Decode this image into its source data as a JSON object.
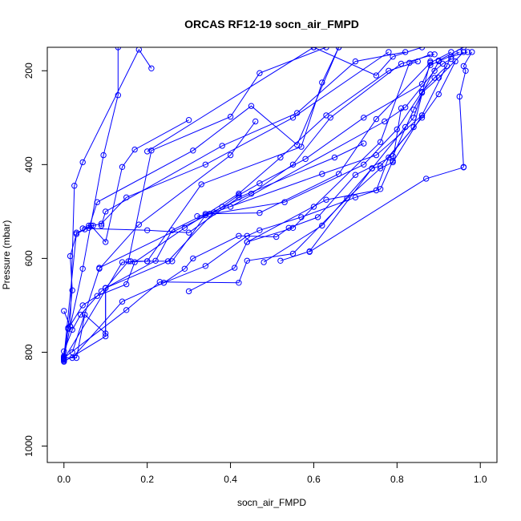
{
  "chart_data": {
    "type": "line",
    "title": "ORCAS RF12-19 socn_air_FMPD",
    "xlabel": "socn_air_FMPD",
    "ylabel": "Pressure (mbar)",
    "xlim": [
      -0.04,
      1.04
    ],
    "ylim": [
      1035,
      150
    ],
    "y_reversed": true,
    "x_ticks": [
      "0.0",
      "0.2",
      "0.4",
      "0.6",
      "0.8",
      "1.0"
    ],
    "y_ticks": [
      "200",
      "400",
      "600",
      "800",
      "1000"
    ],
    "color": "#0000ff",
    "marker": "open-circle",
    "grid": false,
    "series": [
      {
        "values": [
          [
            0.0,
            818
          ],
          [
            0.0,
            808
          ],
          [
            0.01,
            748
          ],
          [
            0.02,
            668
          ],
          [
            0.015,
            595
          ],
          [
            0.03,
            548
          ],
          [
            0.05,
            538
          ],
          [
            0.065,
            530
          ],
          [
            0.1,
            565
          ],
          [
            0.14,
            405
          ],
          [
            0.17,
            368
          ],
          [
            0.3,
            305
          ]
        ]
      },
      {
        "values": [
          [
            0.0,
            814
          ],
          [
            0.0,
            798
          ],
          [
            0.02,
            752
          ],
          [
            0.04,
            720
          ],
          [
            0.09,
            670
          ],
          [
            0.1,
            663
          ],
          [
            0.25,
            606
          ],
          [
            0.36,
            502
          ],
          [
            0.38,
            490
          ],
          [
            0.42,
            465
          ],
          [
            0.47,
            440
          ],
          [
            0.58,
            388
          ],
          [
            0.72,
            300
          ],
          [
            0.86,
            228
          ],
          [
            0.88,
            188
          ],
          [
            0.95,
            160
          ]
        ]
      },
      {
        "values": [
          [
            0.0,
            812
          ],
          [
            0.03,
            812
          ],
          [
            0.05,
            720
          ],
          [
            0.1,
            760
          ],
          [
            0.1,
            663
          ],
          [
            0.22,
            605
          ],
          [
            0.26,
            540
          ],
          [
            0.34,
            505
          ],
          [
            0.47,
            503
          ],
          [
            0.66,
            420
          ],
          [
            0.75,
            303
          ],
          [
            0.88,
            183
          ],
          [
            0.93,
            160
          ]
        ]
      },
      {
        "values": [
          [
            0.0,
            816
          ],
          [
            0.01,
            750
          ],
          [
            0.045,
            700
          ],
          [
            0.08,
            680
          ],
          [
            0.15,
            655
          ],
          [
            0.17,
            608
          ],
          [
            0.29,
            535
          ],
          [
            0.42,
            462
          ],
          [
            0.52,
            385
          ],
          [
            0.63,
            295
          ],
          [
            0.78,
            200
          ],
          [
            0.85,
            180
          ]
        ]
      },
      {
        "values": [
          [
            0.0,
            812
          ],
          [
            0.015,
            745
          ],
          [
            0.045,
            622
          ],
          [
            0.095,
            380
          ],
          [
            0.13,
            252
          ],
          [
            0.13,
            150
          ]
        ]
      },
      {
        "values": [
          [
            0.0,
            712
          ],
          [
            0.015,
            745
          ],
          [
            0.025,
            445
          ],
          [
            0.045,
            395
          ],
          [
            0.18,
            155
          ],
          [
            0.21,
            195
          ]
        ]
      },
      {
        "values": [
          [
            0.02,
            800
          ],
          [
            0.085,
            622
          ],
          [
            0.18,
            528
          ],
          [
            0.4,
            380
          ],
          [
            0.46,
            308
          ]
        ]
      },
      {
        "values": [
          [
            0.0,
            812
          ],
          [
            0.15,
            710
          ],
          [
            0.23,
            650
          ],
          [
            0.42,
            652
          ],
          [
            0.44,
            605
          ],
          [
            0.55,
            590
          ],
          [
            0.68,
            472
          ],
          [
            0.76,
            408
          ],
          [
            0.79,
            395
          ],
          [
            0.86,
            295
          ],
          [
            0.93,
            170
          ],
          [
            0.97,
            160
          ]
        ]
      },
      {
        "values": [
          [
            0.02,
            812
          ],
          [
            0.14,
            692
          ],
          [
            0.24,
            652
          ],
          [
            0.29,
            622
          ],
          [
            0.31,
            600
          ],
          [
            0.42,
            552
          ],
          [
            0.51,
            554
          ],
          [
            0.54,
            535
          ],
          [
            0.61,
            512
          ],
          [
            0.7,
            422
          ],
          [
            0.79,
            382
          ],
          [
            0.84,
            283
          ],
          [
            0.9,
            180
          ]
        ]
      },
      {
        "values": [
          [
            0.0,
            820
          ],
          [
            0.1,
            766
          ],
          [
            0.1,
            663
          ],
          [
            0.155,
            606
          ],
          [
            0.21,
            370
          ],
          [
            0.4,
            298
          ],
          [
            0.47,
            205
          ],
          [
            0.63,
            150
          ]
        ]
      },
      {
        "values": [
          [
            0.0,
            815
          ],
          [
            0.14,
            608
          ],
          [
            0.2,
            606
          ],
          [
            0.26,
            606
          ],
          [
            0.34,
            508
          ],
          [
            0.45,
            462
          ],
          [
            0.55,
            400
          ],
          [
            0.64,
            300
          ],
          [
            0.81,
            185
          ],
          [
            0.89,
            165
          ]
        ]
      },
      {
        "values": [
          [
            0.3,
            670
          ],
          [
            0.41,
            620
          ],
          [
            0.44,
            565
          ],
          [
            0.55,
            535
          ],
          [
            0.6,
            490
          ],
          [
            0.76,
            352
          ],
          [
            0.83,
            183
          ],
          [
            0.88,
            165
          ]
        ]
      },
      {
        "values": [
          [
            0.24,
            652
          ],
          [
            0.34,
            616
          ],
          [
            0.44,
            552
          ],
          [
            0.47,
            540
          ],
          [
            0.57,
            512
          ],
          [
            0.7,
            470
          ],
          [
            0.76,
            452
          ],
          [
            0.79,
            392
          ],
          [
            0.81,
            280
          ]
        ]
      },
      {
        "values": [
          [
            0.16,
            606
          ],
          [
            0.2,
            606
          ],
          [
            0.33,
            442
          ],
          [
            0.57,
            362
          ],
          [
            0.62,
            225
          ],
          [
            0.66,
            150
          ]
        ]
      },
      {
        "values": [
          [
            0.52,
            605
          ],
          [
            0.59,
            585
          ],
          [
            0.74,
            408
          ],
          [
            0.82,
            320
          ],
          [
            0.84,
            300
          ],
          [
            0.86,
            247
          ],
          [
            0.9,
            215
          ],
          [
            0.96,
            160
          ]
        ]
      },
      {
        "values": [
          [
            0.32,
            510
          ],
          [
            0.53,
            480
          ],
          [
            0.72,
            400
          ],
          [
            0.8,
            325
          ],
          [
            0.86,
            245
          ],
          [
            0.89,
            215
          ],
          [
            0.92,
            190
          ]
        ]
      },
      {
        "values": [
          [
            0.48,
            608
          ],
          [
            0.62,
            530
          ],
          [
            0.74,
            408
          ],
          [
            0.76,
            403
          ],
          [
            0.86,
            300
          ],
          [
            0.9,
            250
          ],
          [
            0.94,
            180
          ]
        ]
      },
      {
        "values": [
          [
            0.96,
            405
          ],
          [
            0.95,
            255
          ],
          [
            0.965,
            200
          ],
          [
            0.96,
            190
          ],
          [
            0.98,
            160
          ]
        ]
      },
      {
        "values": [
          [
            0.0,
            810
          ],
          [
            0.03,
            545
          ],
          [
            0.06,
            535
          ],
          [
            0.08,
            480
          ],
          [
            0.31,
            370
          ],
          [
            0.45,
            275
          ],
          [
            0.56,
            358
          ],
          [
            0.66,
            150
          ]
        ]
      },
      {
        "values": [
          [
            0.2,
            372
          ],
          [
            0.6,
            150
          ]
        ]
      },
      {
        "values": [
          [
            0.085,
            620
          ],
          [
            0.35,
            505
          ],
          [
            0.62,
            420
          ],
          [
            0.75,
            380
          ],
          [
            0.86,
            295
          ]
        ]
      },
      {
        "values": [
          [
            0.9,
            178
          ],
          [
            0.96,
            150
          ]
        ]
      },
      {
        "values": [
          [
            0.045,
            536
          ],
          [
            0.2,
            540
          ],
          [
            0.3,
            545
          ],
          [
            0.42,
            470
          ],
          [
            0.65,
            385
          ],
          [
            0.72,
            355
          ]
        ]
      },
      {
        "values": [
          [
            0.59,
            586
          ],
          [
            0.87,
            430
          ],
          [
            0.96,
            406
          ]
        ]
      },
      {
        "values": [
          [
            0.4,
            490
          ],
          [
            0.77,
            308
          ],
          [
            0.82,
            278
          ],
          [
            0.89,
            200
          ],
          [
            0.91,
            185
          ],
          [
            0.93,
            175
          ]
        ]
      },
      {
        "values": [
          [
            0.44,
            565
          ],
          [
            0.63,
            475
          ],
          [
            0.75,
            455
          ],
          [
            0.78,
            385
          ],
          [
            0.84,
            320
          ],
          [
            0.88,
            180
          ]
        ]
      },
      {
        "values": [
          [
            0.6,
            150
          ],
          [
            0.75,
            210
          ],
          [
            0.79,
            170
          ],
          [
            0.86,
            150
          ]
        ]
      },
      {
        "values": [
          [
            0.06,
            530
          ],
          [
            0.07,
            530
          ],
          [
            0.09,
            526
          ],
          [
            0.15,
            470
          ],
          [
            0.34,
            400
          ],
          [
            0.55,
            300
          ],
          [
            0.78,
            160
          ]
        ]
      },
      {
        "values": [
          [
            0.09,
            530
          ],
          [
            0.1,
            500
          ],
          [
            0.38,
            360
          ],
          [
            0.56,
            290
          ],
          [
            0.7,
            180
          ],
          [
            0.82,
            160
          ]
        ]
      }
    ]
  }
}
